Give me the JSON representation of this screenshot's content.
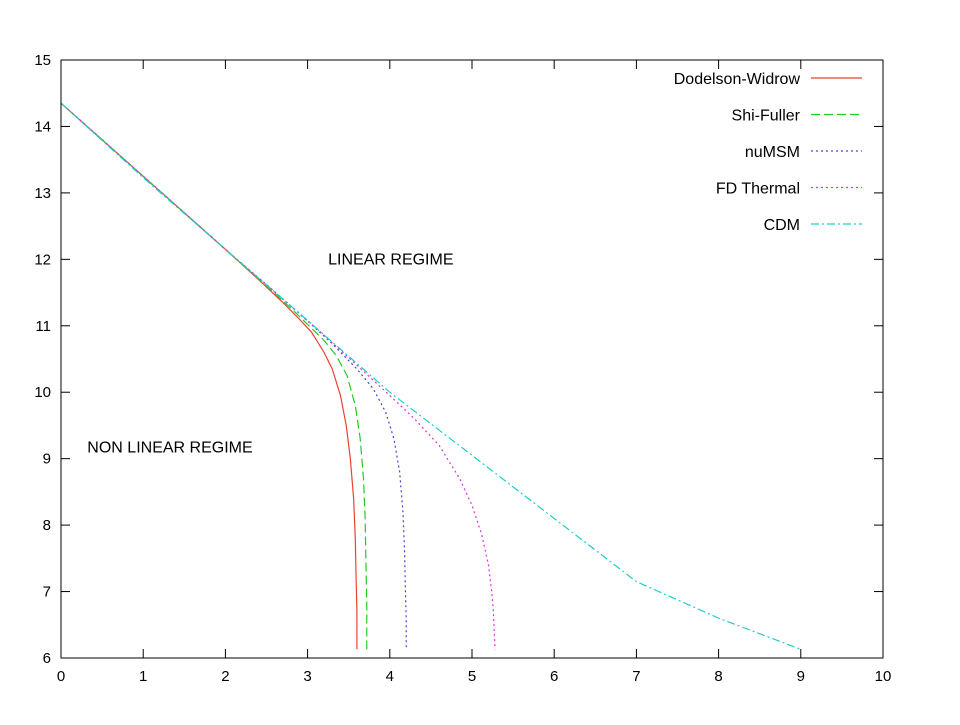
{
  "chart_data": {
    "type": "line",
    "title": "",
    "xlabel": "",
    "ylabel": "",
    "xlim": [
      0,
      10
    ],
    "ylim": [
      6,
      15
    ],
    "xticks": [
      0,
      1,
      2,
      3,
      4,
      5,
      6,
      7,
      8,
      9,
      10
    ],
    "yticks": [
      6,
      7,
      8,
      9,
      10,
      11,
      12,
      13,
      14,
      15
    ],
    "xtick_labels": [
      "0",
      "1",
      "2",
      "3",
      "4",
      "5",
      "6",
      "7",
      "8",
      "9",
      "10"
    ],
    "ytick_labels": [
      "6",
      "7",
      "8",
      "9",
      "10",
      "11",
      "12",
      "13",
      "14",
      "15"
    ],
    "grid": false,
    "legend_position": "top-right",
    "annotations": [
      {
        "text": "LINEAR REGIME",
        "x": 3.25,
        "y": 12.0
      },
      {
        "text": "NON LINEAR REGIME",
        "x": 0.32,
        "y": 9.17
      }
    ],
    "series": [
      {
        "name": "Dodelson-Widrow",
        "color": "#e8432f",
        "dash": "solid",
        "x": [
          0,
          0.5,
          1.0,
          1.5,
          2.0,
          2.4,
          2.7,
          2.9,
          3.05,
          3.2,
          3.3,
          3.4,
          3.47,
          3.52,
          3.56,
          3.58,
          3.59,
          3.6,
          3.6
        ],
        "y": [
          14.35,
          13.8,
          13.25,
          12.7,
          12.15,
          11.7,
          11.35,
          11.1,
          10.9,
          10.6,
          10.35,
          9.95,
          9.5,
          9.0,
          8.4,
          7.8,
          7.2,
          6.7,
          6.13
        ]
      },
      {
        "name": "Shi-Fuller",
        "color": "#22cc22",
        "dash": "dashed",
        "x": [
          0,
          0.5,
          1.0,
          1.5,
          2.0,
          2.5,
          2.8,
          3.0,
          3.2,
          3.35,
          3.48,
          3.58,
          3.64,
          3.68,
          3.7,
          3.71,
          3.72,
          3.72
        ],
        "y": [
          14.35,
          13.8,
          13.25,
          12.7,
          12.15,
          11.6,
          11.26,
          11.02,
          10.78,
          10.55,
          10.25,
          9.8,
          9.3,
          8.7,
          8.1,
          7.4,
          6.8,
          6.13
        ]
      },
      {
        "name": "nuMSM",
        "color": "#4444dd",
        "dash": "dotted",
        "x": [
          0,
          0.5,
          1.0,
          1.5,
          2.0,
          2.5,
          3.0,
          3.3,
          3.6,
          3.8,
          3.95,
          4.05,
          4.12,
          4.16,
          4.18,
          4.19,
          4.2,
          4.2
        ],
        "y": [
          14.35,
          13.8,
          13.25,
          12.7,
          12.15,
          11.62,
          11.07,
          10.73,
          10.35,
          10.05,
          9.7,
          9.3,
          8.8,
          8.2,
          7.6,
          7.0,
          6.6,
          6.13
        ]
      },
      {
        "name": "FD Thermal",
        "color": "#dd33dd",
        "dash": "dotted",
        "x": [
          0,
          0.5,
          1.0,
          1.5,
          2.0,
          2.5,
          3.0,
          3.5,
          4.0,
          4.3,
          4.6,
          4.85,
          5.0,
          5.12,
          5.2,
          5.24,
          5.26,
          5.27,
          5.28
        ],
        "y": [
          14.35,
          13.8,
          13.25,
          12.7,
          12.15,
          11.62,
          11.08,
          10.52,
          9.95,
          9.6,
          9.2,
          8.7,
          8.3,
          7.85,
          7.4,
          7.0,
          6.7,
          6.4,
          6.13
        ]
      },
      {
        "name": "CDM",
        "color": "#22cccc",
        "dash": "dashdot",
        "x": [
          0,
          1,
          2,
          3,
          4,
          5,
          6,
          7,
          8,
          9
        ],
        "y": [
          14.35,
          13.23,
          12.15,
          11.08,
          10.0,
          9.05,
          8.1,
          7.15,
          6.6,
          6.13
        ]
      }
    ]
  }
}
